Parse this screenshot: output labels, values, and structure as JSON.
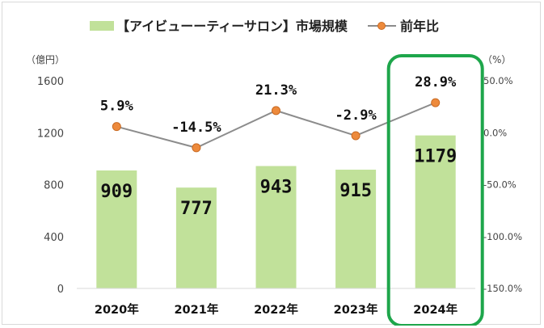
{
  "chart_data": {
    "type": "bar",
    "categories": [
      "2020年",
      "2021年",
      "2022年",
      "2023年",
      "2024年"
    ],
    "series": [
      {
        "name": "【アイビューーティーサロン】市場規模",
        "type": "bar",
        "axis": "left",
        "values": [
          909,
          777,
          943,
          915,
          1179
        ],
        "labels": [
          "909",
          "777",
          "943",
          "915",
          "1179"
        ]
      },
      {
        "name": "前年比",
        "type": "line",
        "axis": "right",
        "values": [
          5.9,
          -14.5,
          21.3,
          -2.9,
          28.9
        ],
        "labels": [
          "5.9%",
          "-14.5%",
          "21.3%",
          "-2.9%",
          "28.9%"
        ]
      }
    ],
    "left_axis": {
      "unit": "（億円）",
      "ylim": [
        0,
        1600
      ],
      "ticks": [
        "0",
        "400",
        "800",
        "1200",
        "1600"
      ]
    },
    "right_axis": {
      "unit": "（%）",
      "ylim": [
        -150,
        50
      ],
      "ticks": [
        "-150.0%",
        "-100.0%",
        "-50.0%",
        "0.0%",
        "50.0%"
      ]
    },
    "highlight_category": "2024年",
    "legend_position": "top",
    "grid": false,
    "colors": {
      "bar": "#c1e19a",
      "line": "#8c8c8c",
      "marker": "#ed8a3c",
      "marker_edge": "#c96a22",
      "highlight": "#1ea64b"
    }
  }
}
